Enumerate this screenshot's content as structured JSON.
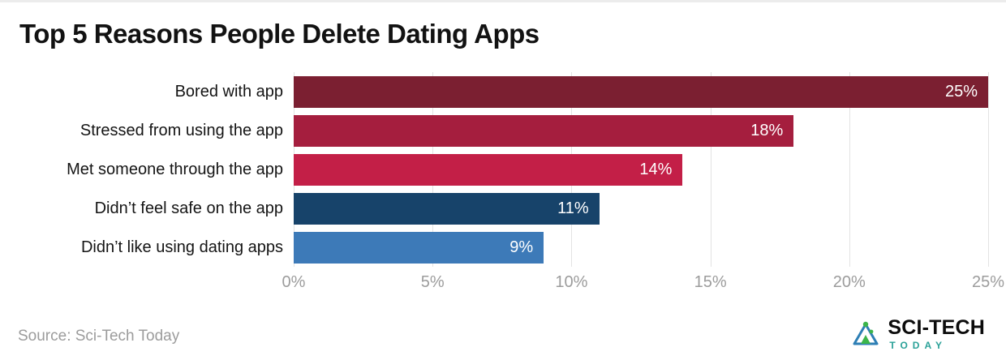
{
  "header": {
    "title": "Top 5 Reasons People Delete Dating Apps"
  },
  "footer": {
    "source": "Source: Sci-Tech Today",
    "logo": {
      "line1": "SCI-TECH",
      "line2": "TODAY",
      "icon": "flask-triangle-icon",
      "accent_green": "#3cb54a",
      "accent_teal": "#2e7fb5"
    }
  },
  "chart_data": {
    "type": "bar",
    "orientation": "horizontal",
    "title": "Top 5 Reasons People Delete Dating Apps",
    "categories": [
      "Bored with app",
      "Stressed from using the app",
      "Met someone through the app",
      "Didn’t feel safe on the app",
      "Didn’t like using dating apps"
    ],
    "values": [
      25,
      18,
      14,
      11,
      9
    ],
    "value_labels": [
      "25%",
      "18%",
      "14%",
      "11%",
      "9%"
    ],
    "colors": [
      "#7b1f31",
      "#a51e3e",
      "#c31f47",
      "#17436a",
      "#3d7ab8"
    ],
    "xlabel": "",
    "ylabel": "",
    "xlim": [
      0,
      25
    ],
    "ticks": [
      "0%",
      "5%",
      "10%",
      "15%",
      "20%",
      "25%"
    ],
    "grid": true,
    "value_label_color": "#ffffff",
    "gridline_color": "#e3e3e3",
    "tick_color": "#9c9c9c",
    "legend": "none"
  }
}
